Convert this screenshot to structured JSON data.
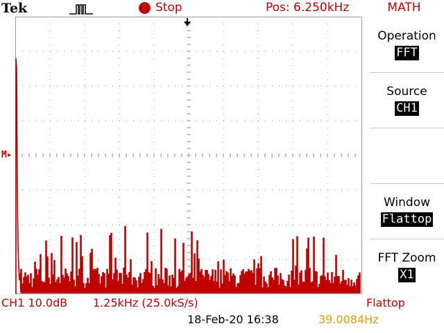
{
  "status_bar": {
    "brand": "Tek",
    "trigger_icon": "pulse-trigger-icon",
    "run_status": "Stop",
    "position": "Pos: 6.250kHz"
  },
  "side_menu": {
    "title": "MATH",
    "items": [
      {
        "label": "Operation",
        "value": "FFT"
      },
      {
        "label": "Source",
        "value": "CH1"
      },
      {
        "label": "Window",
        "value": "Flattop"
      },
      {
        "label": "FFT Zoom",
        "value": "X1"
      }
    ]
  },
  "readouts": {
    "channel_scale": "CH1 10.0dB",
    "timebase": "1.25kHz (25.0kS/s)",
    "window": "Flattop",
    "datetime": "18-Feb-20 16:38",
    "frequency": "39.0084Hz"
  },
  "math_marker": "M",
  "colors": {
    "trace": "#c00000",
    "accent": "#c00000",
    "frequency": "#e0a000",
    "grid": "#9a9a9a"
  }
}
